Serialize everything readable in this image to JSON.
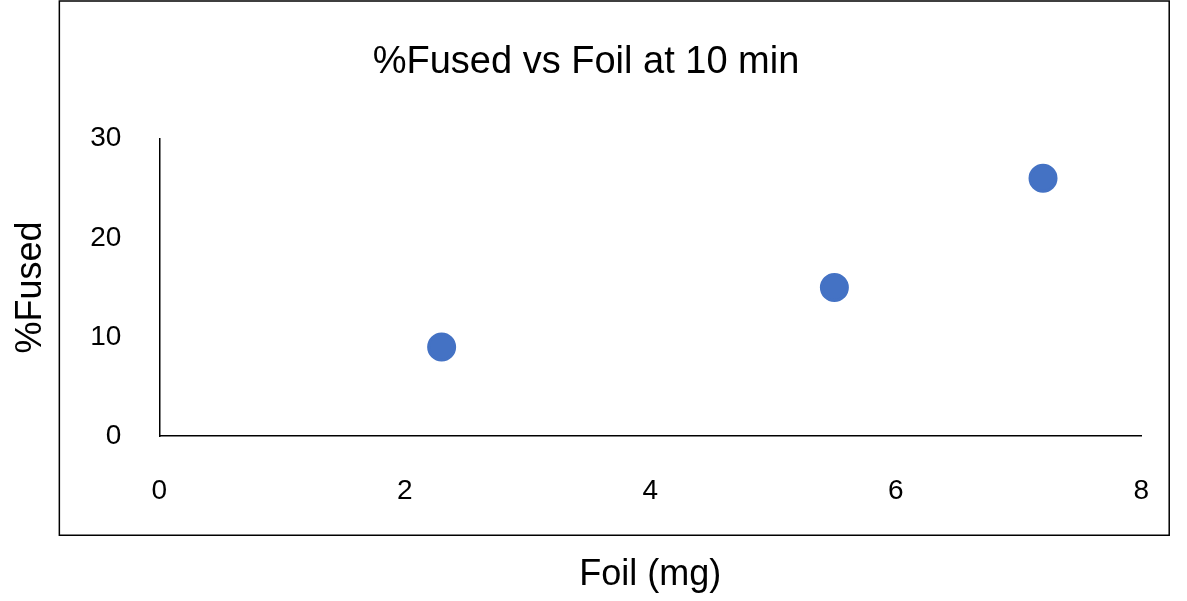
{
  "chart_data": {
    "type": "scatter",
    "title": "%Fused vs Foil at 10 min",
    "xlabel": "Foil (mg)",
    "ylabel": "%Fused",
    "x": [
      2.3,
      5.5,
      7.2
    ],
    "series": [
      {
        "color": "#4472c4",
        "values": [
          9,
          15,
          26
        ]
      }
    ],
    "xlim": [
      0,
      8
    ],
    "xticks": [
      0,
      2,
      4,
      6,
      8
    ],
    "ylim": [
      0,
      30
    ],
    "yticks": [
      0,
      10,
      20,
      30
    ],
    "grid": false,
    "legend": false,
    "marker": "circle"
  }
}
